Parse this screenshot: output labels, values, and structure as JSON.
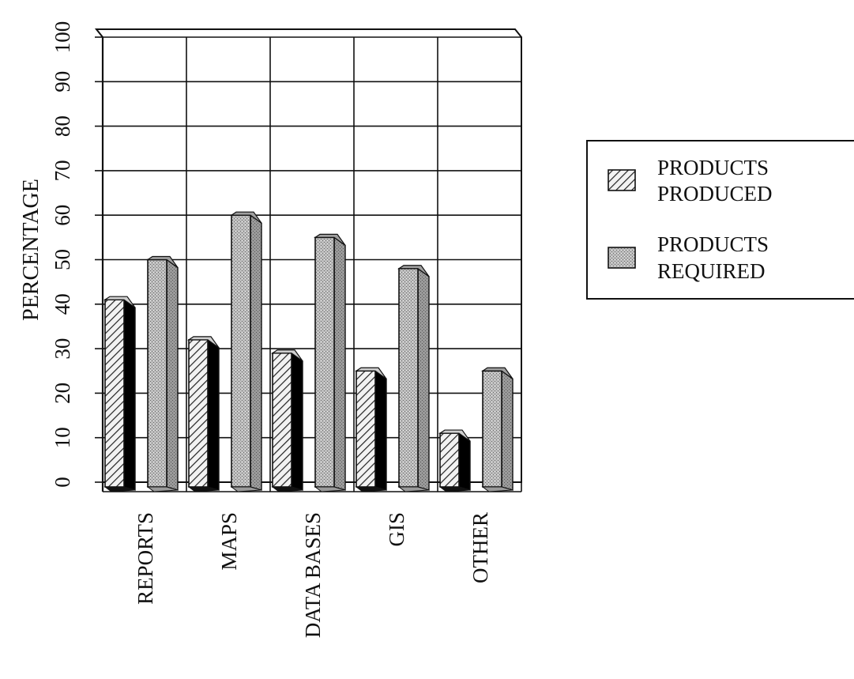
{
  "chart_data": {
    "type": "bar",
    "title": "",
    "xlabel": "",
    "ylabel": "PERCENTAGE",
    "ylim": [
      0,
      100
    ],
    "yticks": [
      0,
      10,
      20,
      30,
      40,
      50,
      60,
      70,
      80,
      90,
      100
    ],
    "categories": [
      "REPORTS",
      "MAPS",
      "DATA BASES",
      "GIS",
      "OTHER"
    ],
    "series": [
      {
        "name": "PRODUCTS PRODUCED",
        "legend_lines": [
          "PRODUCTS",
          "PRODUCED"
        ],
        "pattern": "diagonal-hatch",
        "values": [
          41,
          32,
          29,
          25,
          11
        ]
      },
      {
        "name": "PRODUCTS REQUIRED",
        "legend_lines": [
          "PRODUCTS",
          "REQUIRED"
        ],
        "pattern": "stipple-gray",
        "values": [
          50,
          60,
          55,
          48,
          25
        ]
      }
    ],
    "grid": true,
    "legend_position": "right",
    "style": "3d-bars"
  }
}
